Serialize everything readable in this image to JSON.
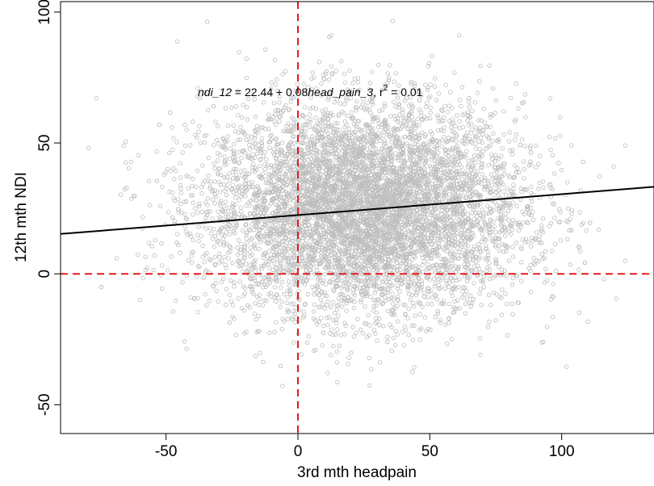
{
  "chart_data": {
    "type": "scatter",
    "title": "",
    "xlabel": "3rd mth headpain",
    "ylabel": "12th mth NDI",
    "xlim": [
      -90,
      135
    ],
    "ylim": [
      -61,
      104
    ],
    "xticks": [
      -50,
      0,
      50,
      100
    ],
    "yticks": [
      -50,
      0,
      50,
      100
    ],
    "xtick_labels": [
      "-50",
      "0",
      "50",
      "100"
    ],
    "ytick_labels": [
      "-50",
      "0",
      "50",
      "100"
    ],
    "grid": false,
    "point_style": "open-circle",
    "point_color": "#bdbdbd",
    "regression": {
      "intercept": 22.44,
      "slope": 0.08,
      "r2": 0.01,
      "color": "#000000",
      "equation_parts": [
        "ndi_12",
        " = 22.44 + 0.08",
        "head_pain_3",
        ",  r",
        "2",
        " = 0.01"
      ]
    },
    "reference_lines": [
      {
        "axis": "x",
        "value": 0,
        "style": "dashed",
        "color": "#e41a1c"
      },
      {
        "axis": "y",
        "value": 0,
        "style": "dashed",
        "color": "#e41a1c"
      }
    ],
    "cloud": {
      "n": 7000,
      "x_mean": 25,
      "x_sd": 30,
      "y_mean": 25,
      "y_sd": 20,
      "x_range": [
        -85,
        130
      ],
      "y_range": [
        -55,
        102
      ]
    }
  }
}
